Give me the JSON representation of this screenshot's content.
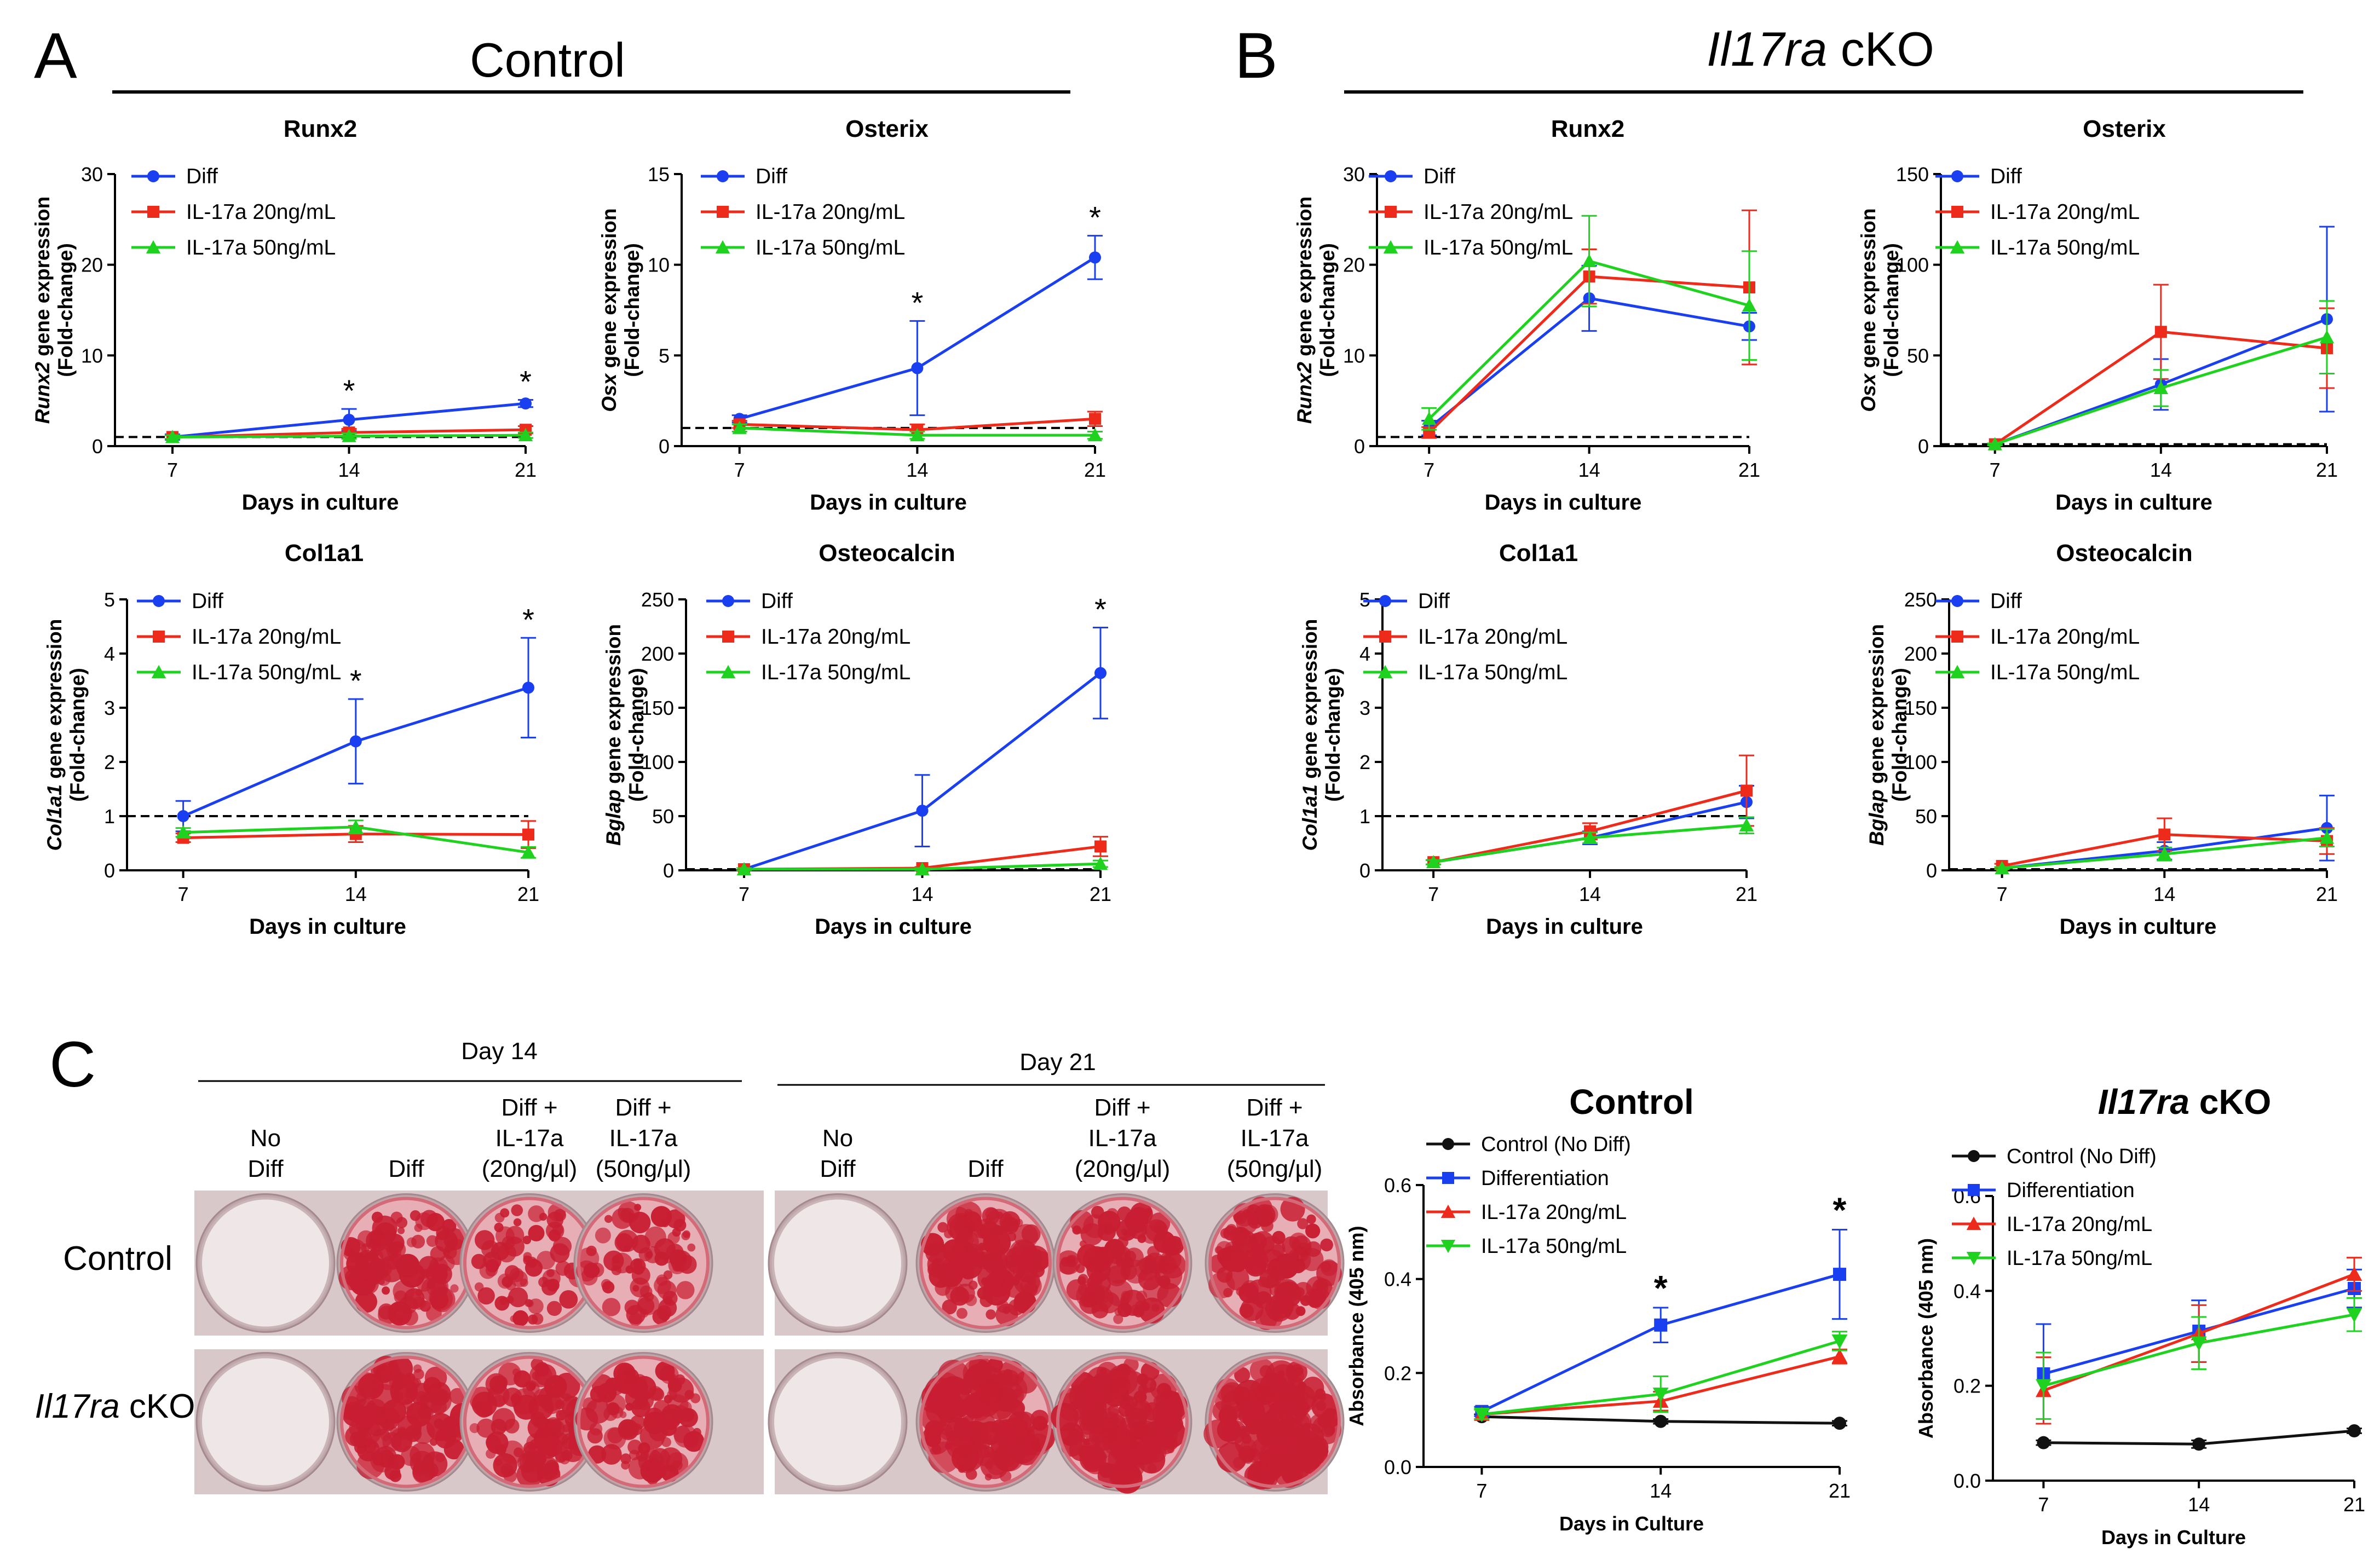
{
  "figure": {
    "panel_a": {
      "letter": "A",
      "title": "Control"
    },
    "panel_b": {
      "letter": "B",
      "title_italic": "Il17ra",
      "title_rest": " cKO"
    },
    "panel_c": {
      "letter": "C",
      "day14": "Day 14",
      "day21": "Day 21",
      "columns": [
        {
          "line1": "No",
          "line2": "Diff",
          "line3": ""
        },
        {
          "line1": "Diff",
          "line2": "",
          "line3": ""
        },
        {
          "line1": "Diff +",
          "line2": "IL-17a",
          "line3": "(20ng/µl)"
        },
        {
          "line1": "Diff +",
          "line2": "IL-17a",
          "line3": "(50ng/µl)"
        }
      ],
      "row_control": "Control",
      "row_cko_italic": "Il17ra",
      "row_cko_rest": " cKO"
    }
  },
  "colors": {
    "diff": "#1a3ff0",
    "il20": "#ee2a1b",
    "il50": "#1fd21f",
    "nodiff": "#111111",
    "stain": "#c81e32"
  },
  "chart_data": [
    {
      "id": "a-runx2",
      "type": "line",
      "title": "Runx2",
      "ylabel_italic": "Runx2",
      "ylabel_rest": " gene expression",
      "ylabel_line2": "(Fold-change)",
      "xlabel": "Days in culture",
      "x": [
        "7",
        "14",
        "21"
      ],
      "ylim": [
        0,
        30
      ],
      "yticks": [
        "0",
        "10",
        "20",
        "30"
      ],
      "baseline": 1,
      "legend": [
        "Diff",
        "IL-17a 20ng/mL",
        "IL-17a 50ng/mL"
      ],
      "series": [
        {
          "name": "Diff",
          "values": [
            1.0,
            2.9,
            4.7
          ],
          "err": [
            0.3,
            1.2,
            0.4
          ]
        },
        {
          "name": "IL-17a 20ng/mL",
          "values": [
            1.0,
            1.5,
            1.8
          ],
          "err": [
            0.2,
            0.4,
            0.4
          ]
        },
        {
          "name": "IL-17a 50ng/mL",
          "values": [
            1.0,
            1.1,
            1.2
          ],
          "err": [
            0.2,
            0.3,
            0.3
          ]
        }
      ],
      "stars": [
        "",
        "*",
        "*"
      ]
    },
    {
      "id": "a-osterix",
      "type": "line",
      "title": "Osterix",
      "ylabel_italic": "Osx",
      "ylabel_rest": " gene expression",
      "ylabel_line2": "(Fold-change)",
      "xlabel": "Days in culture",
      "x": [
        "7",
        "14",
        "21"
      ],
      "ylim": [
        0,
        15
      ],
      "yticks": [
        "0",
        "5",
        "10",
        "15"
      ],
      "baseline": 1,
      "legend": [
        "Diff",
        "IL-17a 20ng/mL",
        "IL-17a 50ng/mL"
      ],
      "series": [
        {
          "name": "Diff",
          "values": [
            1.5,
            4.3,
            10.4
          ],
          "err": [
            0.2,
            2.6,
            1.2
          ]
        },
        {
          "name": "IL-17a 20ng/mL",
          "values": [
            1.2,
            0.9,
            1.5
          ],
          "err": [
            0.2,
            0.3,
            0.4
          ]
        },
        {
          "name": "IL-17a 50ng/mL",
          "values": [
            1.0,
            0.6,
            0.6
          ],
          "err": [
            0.2,
            0.2,
            0.2
          ]
        }
      ],
      "stars": [
        "",
        "*",
        "*"
      ]
    },
    {
      "id": "a-col1a1",
      "type": "line",
      "title": "Col1a1",
      "ylabel_italic": "Col1a1",
      "ylabel_rest": " gene expression",
      "ylabel_line2": "(Fold-change)",
      "xlabel": "Days in culture",
      "x": [
        "7",
        "14",
        "21"
      ],
      "ylim": [
        0,
        5
      ],
      "yticks": [
        "0",
        "1",
        "2",
        "3",
        "4",
        "5"
      ],
      "baseline": 1,
      "legend": [
        "Diff",
        "IL-17a 20ng/mL",
        "IL-17a 50ng/mL"
      ],
      "series": [
        {
          "name": "Diff",
          "values": [
            1.0,
            2.38,
            3.37
          ],
          "err": [
            0.28,
            0.78,
            0.92
          ]
        },
        {
          "name": "IL-17a 20ng/mL",
          "values": [
            0.6,
            0.67,
            0.66
          ],
          "err": [
            0.08,
            0.15,
            0.25
          ]
        },
        {
          "name": "IL-17a 50ng/mL",
          "values": [
            0.7,
            0.8,
            0.33
          ],
          "err": [
            0.08,
            0.12,
            0.1
          ]
        }
      ],
      "stars": [
        "",
        "*",
        "*"
      ]
    },
    {
      "id": "a-osteocalcin",
      "type": "line",
      "title": "Osteocalcin",
      "ylabel_italic": "Bglap",
      "ylabel_rest": " gene expression",
      "ylabel_line2": "(Fold-change)",
      "xlabel": "Days in culture",
      "x": [
        "7",
        "14",
        "21"
      ],
      "ylim": [
        0,
        250
      ],
      "yticks": [
        "0",
        "50",
        "100",
        "150",
        "200",
        "250"
      ],
      "baseline": 1,
      "legend": [
        "Diff",
        "IL-17a 20ng/mL",
        "IL-17a 50ng/mL"
      ],
      "series": [
        {
          "name": "Diff",
          "values": [
            1,
            55,
            182
          ],
          "err": [
            1,
            33,
            42
          ]
        },
        {
          "name": "IL-17a 20ng/mL",
          "values": [
            1,
            2,
            22
          ],
          "err": [
            1,
            1,
            9
          ]
        },
        {
          "name": "IL-17a 50ng/mL",
          "values": [
            1,
            1,
            6
          ],
          "err": [
            1,
            1,
            3
          ]
        }
      ],
      "stars": [
        "",
        "",
        "*"
      ]
    },
    {
      "id": "b-runx2",
      "type": "line",
      "title": "Runx2",
      "ylabel_italic": "Runx2",
      "ylabel_rest": " gene expression",
      "ylabel_line2": "(Fold-change)",
      "xlabel": "Days in culture",
      "x": [
        "7",
        "14",
        "21"
      ],
      "ylim": [
        0,
        30
      ],
      "yticks": [
        "0",
        "10",
        "20",
        "30"
      ],
      "baseline": 1,
      "legend": [
        "Diff",
        "IL-17a 20ng/mL",
        "IL-17a 50ng/mL"
      ],
      "series": [
        {
          "name": "Diff",
          "values": [
            2.0,
            16.3,
            13.2
          ],
          "err": [
            0.8,
            3.6,
            1.5
          ]
        },
        {
          "name": "IL-17a 20ng/mL",
          "values": [
            1.5,
            18.7,
            17.5
          ],
          "err": [
            0.6,
            3.0,
            8.5
          ]
        },
        {
          "name": "IL-17a 50ng/mL",
          "values": [
            3.0,
            20.4,
            15.5
          ],
          "err": [
            1.2,
            5.0,
            6.0
          ]
        }
      ],
      "stars": [
        "",
        "",
        ""
      ]
    },
    {
      "id": "b-osterix",
      "type": "line",
      "title": "Osterix",
      "ylabel_italic": "Osx",
      "ylabel_rest": " gene expression",
      "ylabel_line2": "(Fold-change)",
      "xlabel": "Days in culture",
      "x": [
        "7",
        "14",
        "21"
      ],
      "ylim": [
        0,
        150
      ],
      "yticks": [
        "0",
        "50",
        "100",
        "150"
      ],
      "baseline": 1,
      "legend": [
        "Diff",
        "IL-17a 20ng/mL",
        "IL-17a 50ng/mL"
      ],
      "series": [
        {
          "name": "Diff",
          "values": [
            1,
            34,
            70
          ],
          "err": [
            0.5,
            14,
            51
          ]
        },
        {
          "name": "IL-17a 20ng/mL",
          "values": [
            1,
            63,
            54
          ],
          "err": [
            0.5,
            26,
            22
          ]
        },
        {
          "name": "IL-17a 50ng/mL",
          "values": [
            1,
            32,
            60
          ],
          "err": [
            0.5,
            10,
            20
          ]
        }
      ],
      "stars": [
        "",
        "",
        ""
      ]
    },
    {
      "id": "b-col1a1",
      "type": "line",
      "title": "Col1a1",
      "ylabel_italic": "Col1a1",
      "ylabel_rest": " gene expression",
      "ylabel_line2": "(Fold-change)",
      "xlabel": "Days in culture",
      "x": [
        "7",
        "14",
        "21"
      ],
      "ylim": [
        0,
        5
      ],
      "yticks": [
        "0",
        "1",
        "2",
        "3",
        "4",
        "5"
      ],
      "baseline": 1,
      "legend": [
        "Diff",
        "IL-17a 20ng/mL",
        "IL-17a 50ng/mL"
      ],
      "series": [
        {
          "name": "Diff",
          "values": [
            0.15,
            0.6,
            1.26
          ],
          "err": [
            0.04,
            0.12,
            0.3
          ]
        },
        {
          "name": "IL-17a 20ng/mL",
          "values": [
            0.15,
            0.72,
            1.47
          ],
          "err": [
            0.04,
            0.15,
            0.65
          ]
        },
        {
          "name": "IL-17a 50ng/mL",
          "values": [
            0.15,
            0.6,
            0.83
          ],
          "err": [
            0.04,
            0.1,
            0.15
          ]
        }
      ],
      "stars": [
        "",
        "",
        ""
      ]
    },
    {
      "id": "b-osteocalcin",
      "type": "line",
      "title": "Osteocalcin",
      "ylabel_italic": "Bglap",
      "ylabel_rest": " gene expression",
      "ylabel_line2": "(Fold-change)",
      "xlabel": "Days in culture",
      "x": [
        "7",
        "14",
        "21"
      ],
      "ylim": [
        0,
        250
      ],
      "yticks": [
        "0",
        "50",
        "100",
        "150",
        "200",
        "250"
      ],
      "baseline": 1,
      "legend": [
        "Diff",
        "IL-17a 20ng/mL",
        "IL-17a 50ng/mL"
      ],
      "series": [
        {
          "name": "Diff",
          "values": [
            2,
            18,
            39
          ],
          "err": [
            1,
            8,
            30
          ]
        },
        {
          "name": "IL-17a 20ng/mL",
          "values": [
            4,
            33,
            27
          ],
          "err": [
            2,
            15,
            12
          ]
        },
        {
          "name": "IL-17a 50ng/mL",
          "values": [
            2,
            15,
            30
          ],
          "err": [
            1,
            6,
            8
          ]
        }
      ],
      "stars": [
        "",
        "",
        ""
      ]
    },
    {
      "id": "c-control",
      "type": "line",
      "title": "Control",
      "ylabel": "Absorbance (405 nm)",
      "xlabel": "Days in Culture",
      "x": [
        "7",
        "14",
        "21"
      ],
      "ylim": [
        0,
        0.6
      ],
      "yticks": [
        "0.0",
        "0.2",
        "0.4",
        "0.6"
      ],
      "legend": [
        "Control (No Diff)",
        "Differentiation",
        "IL-17a 20ng/mL",
        "IL-17a 50ng/mL"
      ],
      "series": [
        {
          "name": "Control (No Diff)",
          "values": [
            0.107,
            0.097,
            0.093
          ],
          "err": [
            0.005,
            0.005,
            0.005
          ]
        },
        {
          "name": "Differentiation",
          "values": [
            0.118,
            0.302,
            0.41
          ],
          "err": [
            0.01,
            0.037,
            0.095
          ]
        },
        {
          "name": "IL-17a 20ng/mL",
          "values": [
            0.112,
            0.14,
            0.235
          ],
          "err": [
            0.01,
            0.02,
            0.015
          ]
        },
        {
          "name": "IL-17a 50ng/mL",
          "values": [
            0.112,
            0.155,
            0.268
          ],
          "err": [
            0.01,
            0.038,
            0.02
          ]
        }
      ],
      "stars": [
        "",
        "*",
        "*"
      ]
    },
    {
      "id": "c-cko",
      "type": "line",
      "title_italic": "Il17ra",
      "title_rest": " cKO",
      "ylabel": "Absorbance (405 nm)",
      "xlabel": "Days in Culture",
      "x": [
        "7",
        "14",
        "21"
      ],
      "ylim": [
        0,
        0.6
      ],
      "yticks": [
        "0.0",
        "0.2",
        "0.4",
        "0.6"
      ],
      "legend": [
        "Control (No Diff)",
        "Differentiation",
        "IL-17a 20ng/mL",
        "IL-17a 50ng/mL"
      ],
      "series": [
        {
          "name": "Control (No Diff)",
          "values": [
            0.08,
            0.077,
            0.105
          ],
          "err": [
            0.005,
            0.008,
            0.005
          ]
        },
        {
          "name": "Differentiation",
          "values": [
            0.225,
            0.315,
            0.405
          ],
          "err": [
            0.105,
            0.065,
            0.04
          ]
        },
        {
          "name": "IL-17a 20ng/mL",
          "values": [
            0.19,
            0.31,
            0.435
          ],
          "err": [
            0.07,
            0.06,
            0.035
          ]
        },
        {
          "name": "IL-17a 50ng/mL",
          "values": [
            0.2,
            0.29,
            0.35
          ],
          "err": [
            0.07,
            0.055,
            0.035
          ]
        }
      ],
      "stars": [
        "",
        "",
        ""
      ]
    }
  ]
}
